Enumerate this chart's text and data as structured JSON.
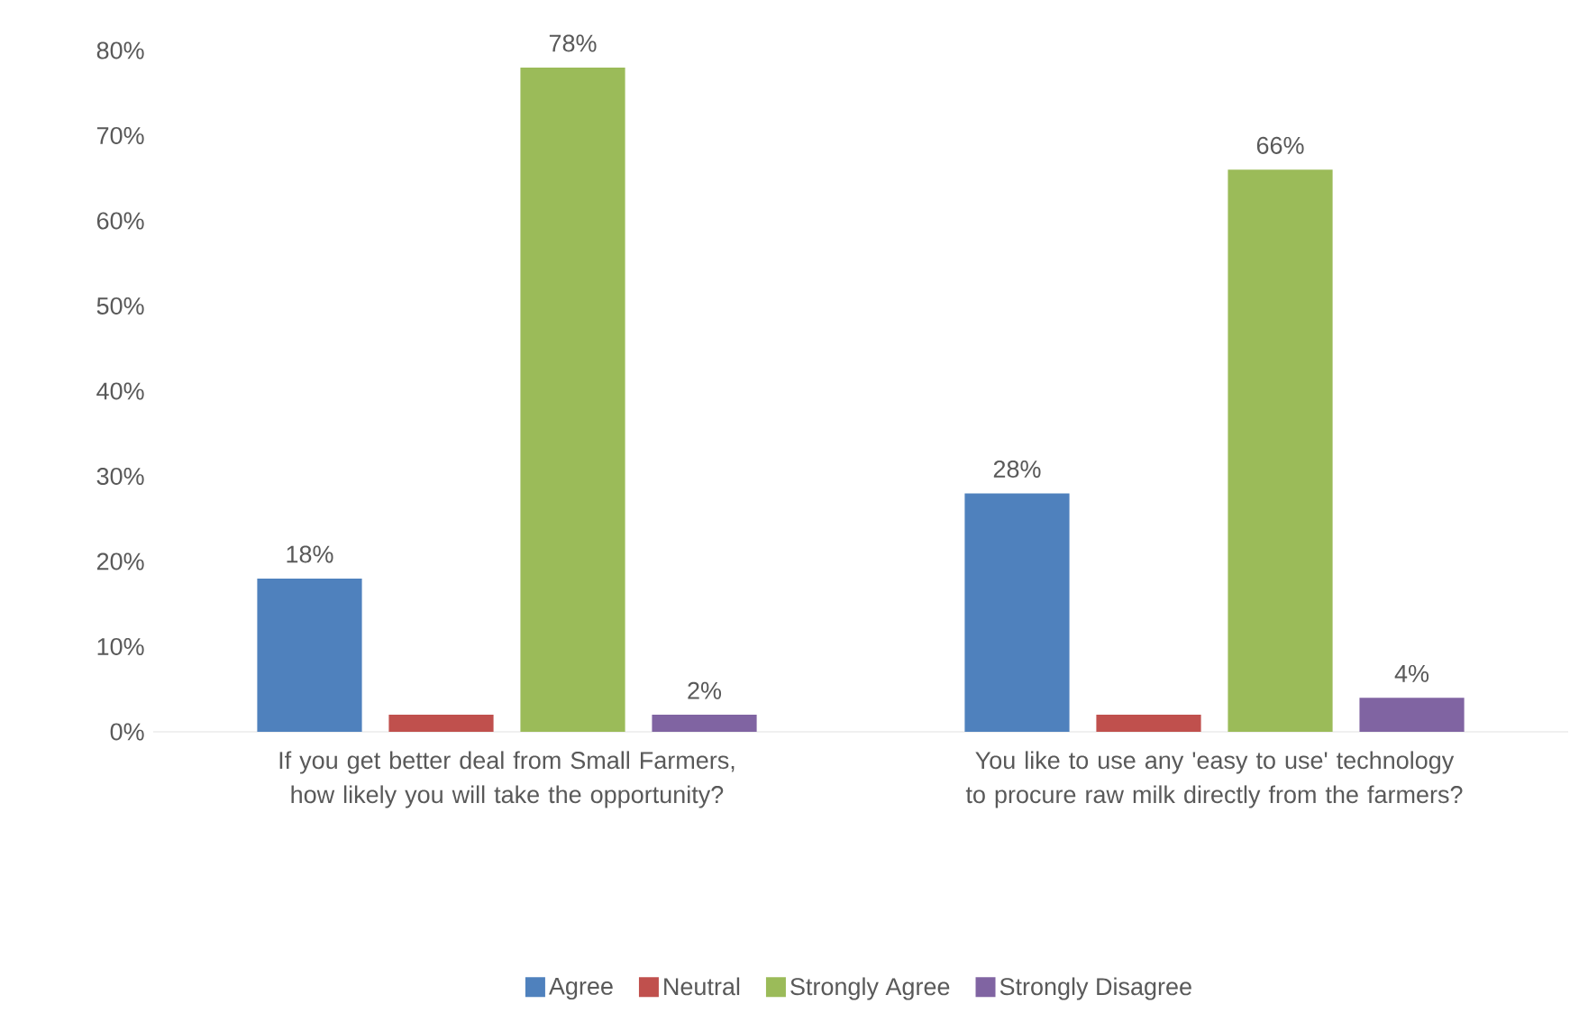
{
  "chart_data": {
    "type": "bar",
    "categories": [
      "If you get better deal from Small Farmers, how likely you will take the opportunity?",
      "You like to use any 'easy to use' technology to procure raw milk directly from the farmers?"
    ],
    "series": [
      {
        "name": "Agree",
        "color": "#4f81bd",
        "values": [
          18,
          28
        ],
        "value_labels": [
          "18%",
          "28%"
        ]
      },
      {
        "name": "Neutral",
        "color": "#c0504d",
        "values": [
          2,
          2
        ],
        "value_labels": [
          null,
          null
        ]
      },
      {
        "name": "Strongly Agree",
        "color": "#9bbb59",
        "values": [
          78,
          66
        ],
        "value_labels": [
          "78%",
          "66%"
        ]
      },
      {
        "name": "Strongly Disagree",
        "color": "#8064a2",
        "values": [
          2,
          4
        ],
        "value_labels": [
          "2%",
          "4%"
        ]
      }
    ],
    "ylim": [
      0,
      80
    ],
    "yticks": [
      {
        "value": 0,
        "label": "0%"
      },
      {
        "value": 10,
        "label": "10%"
      },
      {
        "value": 20,
        "label": "20%"
      },
      {
        "value": 30,
        "label": "30%"
      },
      {
        "value": 40,
        "label": "40%"
      },
      {
        "value": 50,
        "label": "50%"
      },
      {
        "value": 60,
        "label": "60%"
      },
      {
        "value": 70,
        "label": "70%"
      },
      {
        "value": 80,
        "label": "80%"
      }
    ],
    "grid": false,
    "legend": "bottom"
  }
}
